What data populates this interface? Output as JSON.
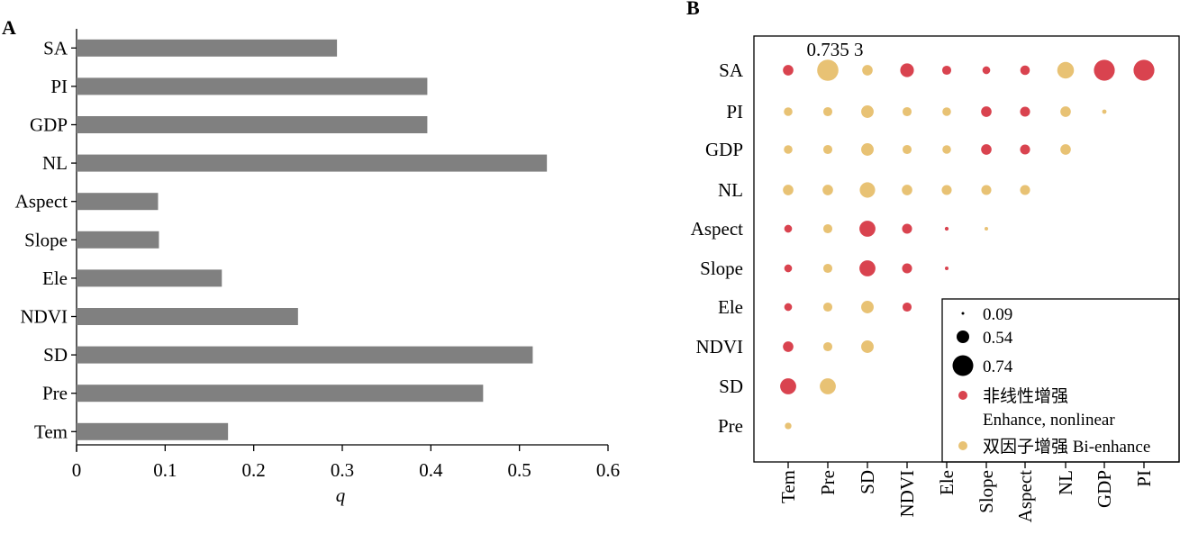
{
  "panels": {
    "a_label": "A",
    "b_label": "B"
  },
  "chart_data": [
    {
      "type": "bar",
      "orientation": "horizontal",
      "categories": [
        "SA",
        "PI",
        "GDP",
        "NL",
        "Aspect",
        "Slope",
        "Ele",
        "NDVI",
        "SD",
        "Pre",
        "Tem"
      ],
      "values": [
        0.294,
        0.396,
        0.396,
        0.531,
        0.092,
        0.093,
        0.164,
        0.25,
        0.515,
        0.459,
        0.171
      ],
      "xlabel": "q",
      "xlim": [
        0,
        0.6
      ],
      "xticks": [
        "0",
        "0.1",
        "0.2",
        "0.3",
        "0.4",
        "0.5",
        "0.6"
      ],
      "bar_color": "#808080"
    },
    {
      "type": "scatter",
      "subtype": "bubble-matrix",
      "rows": [
        "SA",
        "PI",
        "GDP",
        "NL",
        "Aspect",
        "Slope",
        "Ele",
        "NDVI",
        "SD",
        "Pre"
      ],
      "columns": [
        "Tem",
        "Pre",
        "SD",
        "NDVI",
        "Ele",
        "Slope",
        "Aspect",
        "NL",
        "GDP",
        "PI"
      ],
      "annotation": "0.735 3",
      "categories_legend": {
        "nonlinear": "非线性增强",
        "nonlinear_en": "Enhance, nonlinear",
        "bi": "双因子增强 Bi-enhance"
      },
      "size_legend": [
        "0.09",
        "0.54",
        "0.74"
      ],
      "colors": {
        "nonlinear": "#d9434f",
        "bi": "#e8c274",
        "legend_marker": "#000000"
      },
      "points": [
        {
          "row": "SA",
          "col": "Tem",
          "type": "nonlinear",
          "value": 0.56
        },
        {
          "row": "SA",
          "col": "Pre",
          "type": "bi",
          "value": 0.7353
        },
        {
          "row": "SA",
          "col": "SD",
          "type": "bi",
          "value": 0.56
        },
        {
          "row": "SA",
          "col": "NDVI",
          "type": "nonlinear",
          "value": 0.62
        },
        {
          "row": "SA",
          "col": "Ele",
          "type": "nonlinear",
          "value": 0.53
        },
        {
          "row": "SA",
          "col": "Slope",
          "type": "nonlinear",
          "value": 0.5
        },
        {
          "row": "SA",
          "col": "Aspect",
          "type": "nonlinear",
          "value": 0.54
        },
        {
          "row": "SA",
          "col": "NL",
          "type": "bi",
          "value": 0.67
        },
        {
          "row": "SA",
          "col": "GDP",
          "type": "nonlinear",
          "value": 0.73
        },
        {
          "row": "SA",
          "col": "PI",
          "type": "nonlinear",
          "value": 0.73
        },
        {
          "row": "PI",
          "col": "Tem",
          "type": "bi",
          "value": 0.52
        },
        {
          "row": "PI",
          "col": "Pre",
          "type": "bi",
          "value": 0.53
        },
        {
          "row": "PI",
          "col": "SD",
          "type": "bi",
          "value": 0.6
        },
        {
          "row": "PI",
          "col": "NDVI",
          "type": "bi",
          "value": 0.53
        },
        {
          "row": "PI",
          "col": "Ele",
          "type": "bi",
          "value": 0.52
        },
        {
          "row": "PI",
          "col": "Slope",
          "type": "nonlinear",
          "value": 0.56
        },
        {
          "row": "PI",
          "col": "Aspect",
          "type": "nonlinear",
          "value": 0.55
        },
        {
          "row": "PI",
          "col": "NL",
          "type": "bi",
          "value": 0.56
        },
        {
          "row": "PI",
          "col": "GDP",
          "type": "bi",
          "value": 0.4
        },
        {
          "row": "GDP",
          "col": "Tem",
          "type": "bi",
          "value": 0.52
        },
        {
          "row": "GDP",
          "col": "Pre",
          "type": "bi",
          "value": 0.53
        },
        {
          "row": "GDP",
          "col": "SD",
          "type": "bi",
          "value": 0.6
        },
        {
          "row": "GDP",
          "col": "NDVI",
          "type": "bi",
          "value": 0.53
        },
        {
          "row": "GDP",
          "col": "Ele",
          "type": "bi",
          "value": 0.52
        },
        {
          "row": "GDP",
          "col": "Slope",
          "type": "nonlinear",
          "value": 0.56
        },
        {
          "row": "GDP",
          "col": "Aspect",
          "type": "nonlinear",
          "value": 0.55
        },
        {
          "row": "GDP",
          "col": "NL",
          "type": "bi",
          "value": 0.56
        },
        {
          "row": "NL",
          "col": "Tem",
          "type": "bi",
          "value": 0.56
        },
        {
          "row": "NL",
          "col": "Pre",
          "type": "bi",
          "value": 0.56
        },
        {
          "row": "NL",
          "col": "SD",
          "type": "bi",
          "value": 0.65
        },
        {
          "row": "NL",
          "col": "NDVI",
          "type": "bi",
          "value": 0.56
        },
        {
          "row": "NL",
          "col": "Ele",
          "type": "bi",
          "value": 0.55
        },
        {
          "row": "NL",
          "col": "Slope",
          "type": "bi",
          "value": 0.55
        },
        {
          "row": "NL",
          "col": "Aspect",
          "type": "bi",
          "value": 0.55
        },
        {
          "row": "Aspect",
          "col": "Tem",
          "type": "nonlinear",
          "value": 0.5
        },
        {
          "row": "Aspect",
          "col": "Pre",
          "type": "bi",
          "value": 0.53
        },
        {
          "row": "Aspect",
          "col": "SD",
          "type": "nonlinear",
          "value": 0.66
        },
        {
          "row": "Aspect",
          "col": "NDVI",
          "type": "nonlinear",
          "value": 0.55
        },
        {
          "row": "Aspect",
          "col": "Ele",
          "type": "nonlinear",
          "value": 0.38
        },
        {
          "row": "Aspect",
          "col": "Slope",
          "type": "bi",
          "value": 0.12
        },
        {
          "row": "Slope",
          "col": "Tem",
          "type": "nonlinear",
          "value": 0.5
        },
        {
          "row": "Slope",
          "col": "Pre",
          "type": "bi",
          "value": 0.53
        },
        {
          "row": "Slope",
          "col": "SD",
          "type": "nonlinear",
          "value": 0.66
        },
        {
          "row": "Slope",
          "col": "NDVI",
          "type": "nonlinear",
          "value": 0.55
        },
        {
          "row": "Slope",
          "col": "Ele",
          "type": "nonlinear",
          "value": 0.36
        },
        {
          "row": "Ele",
          "col": "Tem",
          "type": "nonlinear",
          "value": 0.5
        },
        {
          "row": "Ele",
          "col": "Pre",
          "type": "bi",
          "value": 0.53
        },
        {
          "row": "Ele",
          "col": "SD",
          "type": "bi",
          "value": 0.6
        },
        {
          "row": "Ele",
          "col": "NDVI",
          "type": "nonlinear",
          "value": 0.53
        },
        {
          "row": "NDVI",
          "col": "Tem",
          "type": "nonlinear",
          "value": 0.56
        },
        {
          "row": "NDVI",
          "col": "Pre",
          "type": "bi",
          "value": 0.53
        },
        {
          "row": "NDVI",
          "col": "SD",
          "type": "bi",
          "value": 0.6
        },
        {
          "row": "SD",
          "col": "Tem",
          "type": "nonlinear",
          "value": 0.66
        },
        {
          "row": "SD",
          "col": "Pre",
          "type": "bi",
          "value": 0.66
        },
        {
          "row": "Pre",
          "col": "Tem",
          "type": "bi",
          "value": 0.47
        }
      ]
    }
  ]
}
